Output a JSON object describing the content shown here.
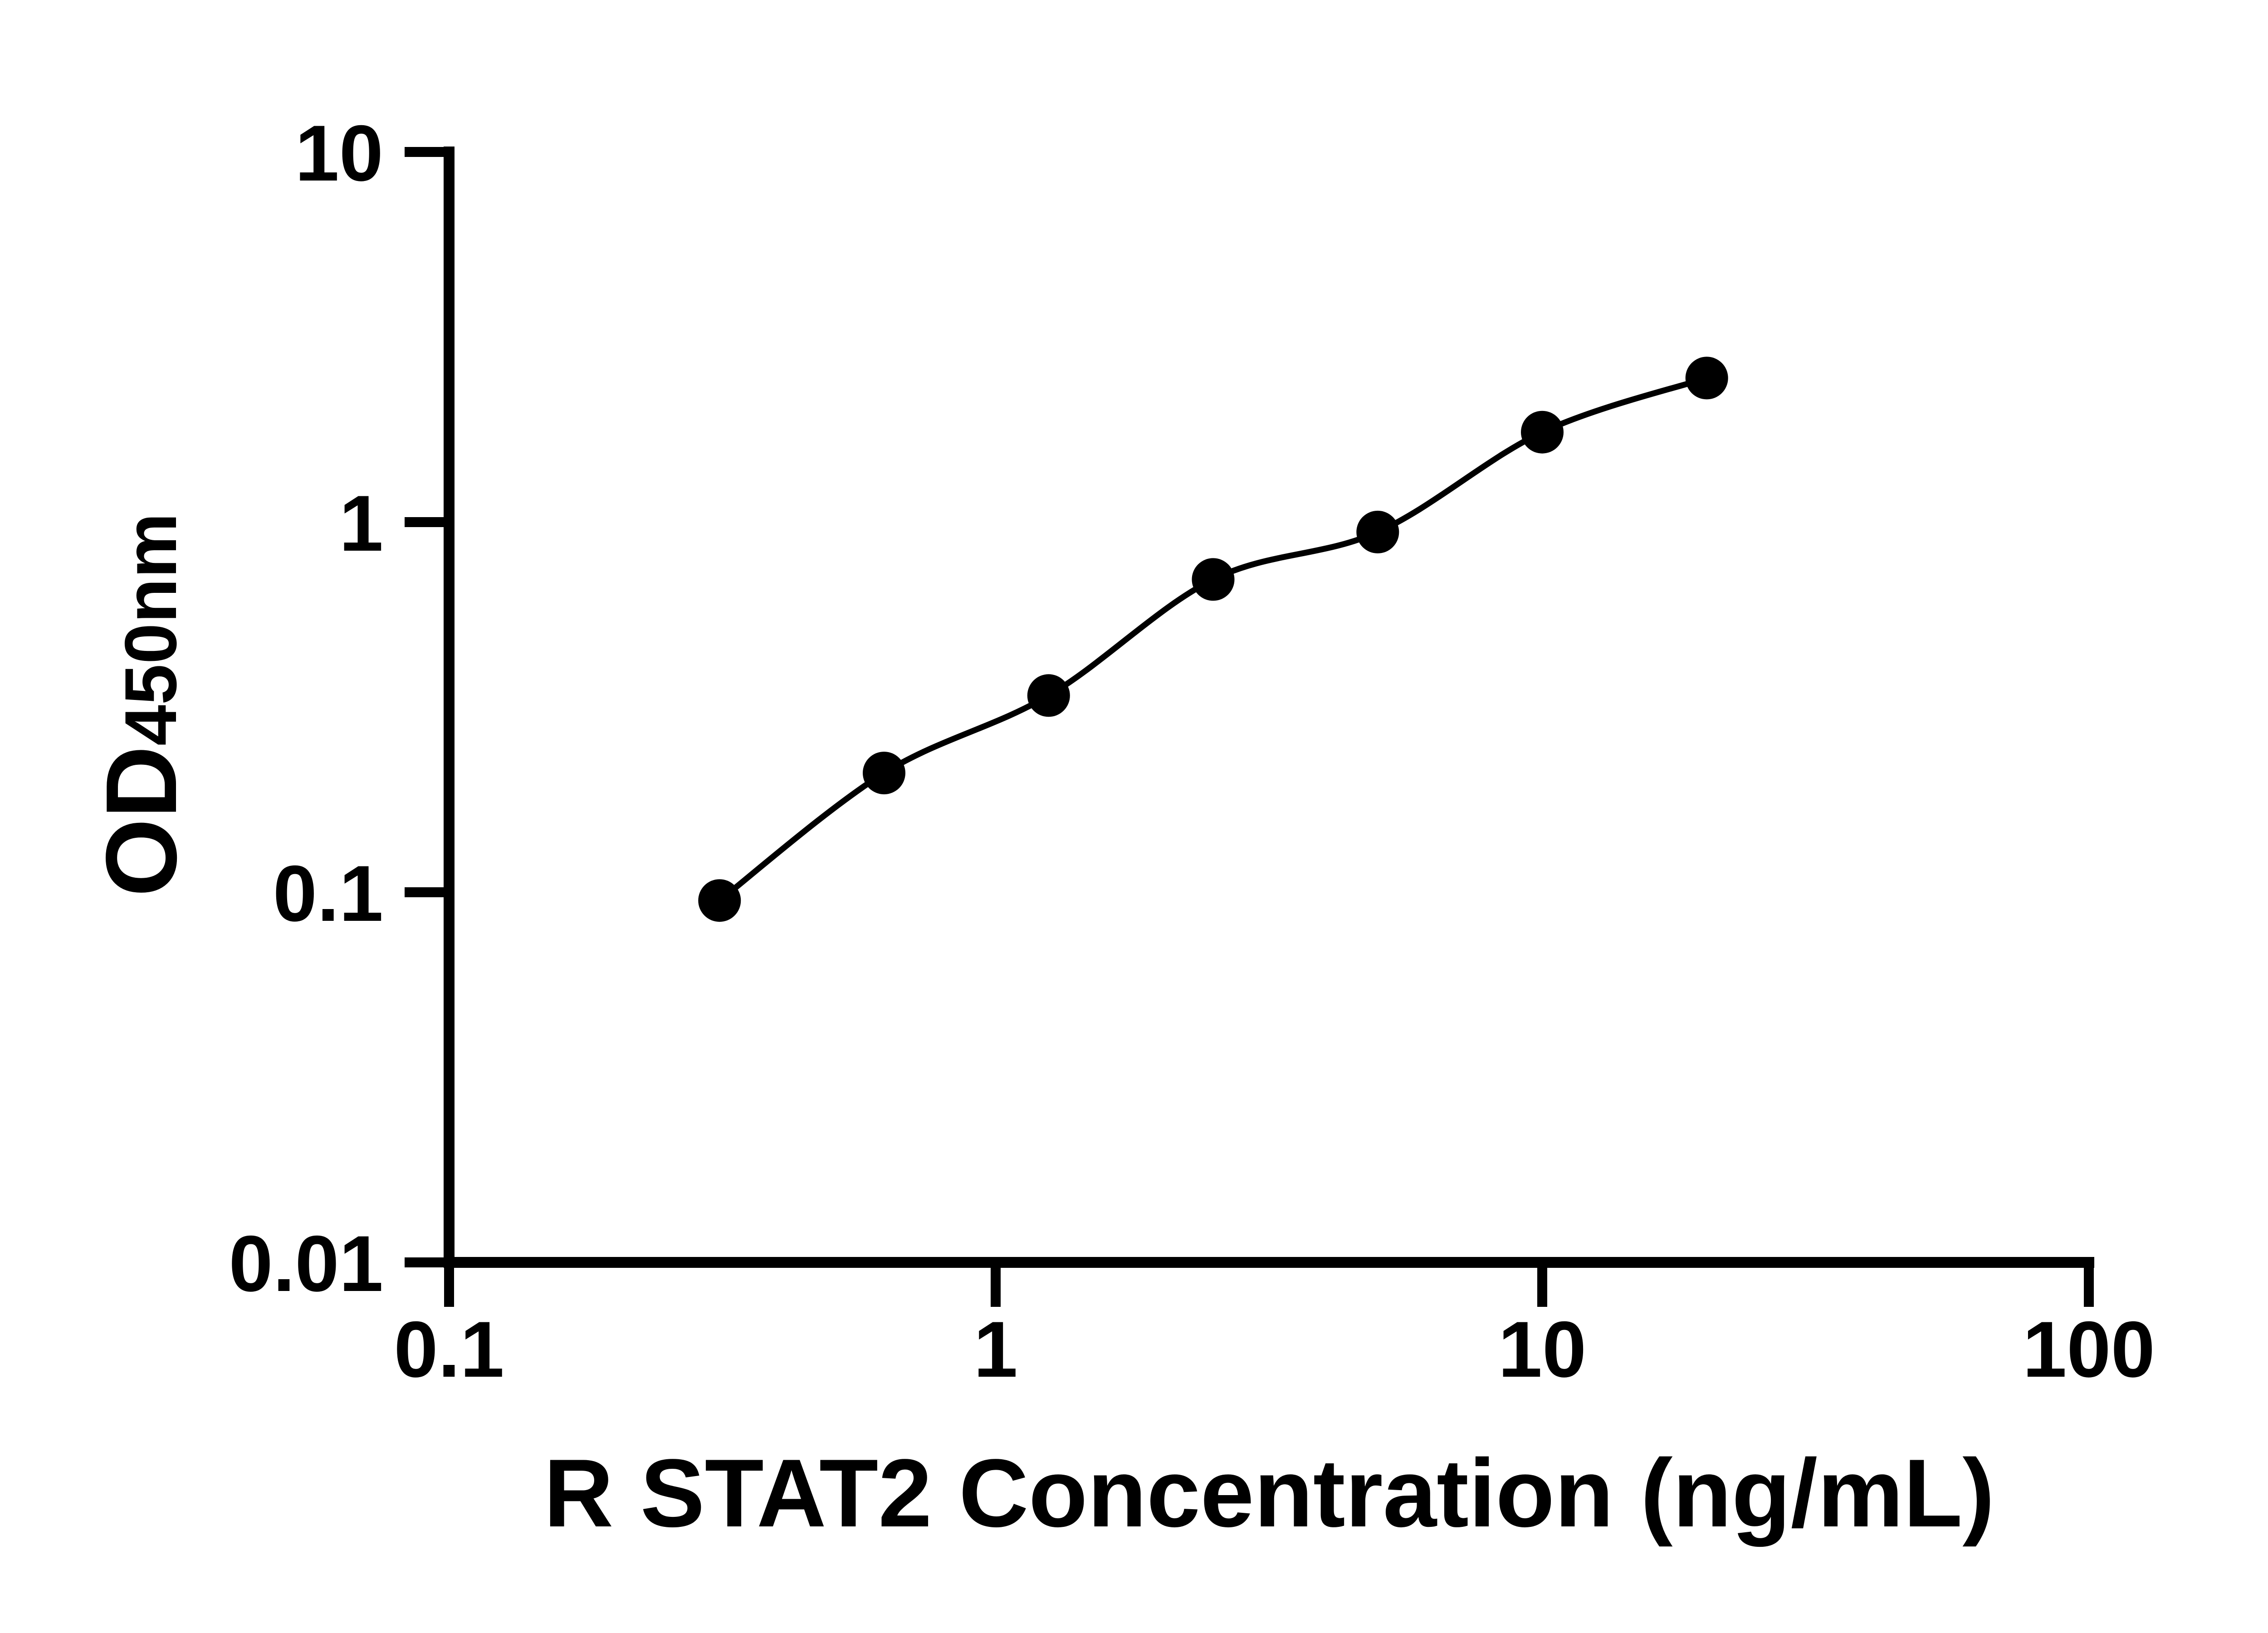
{
  "figure": {
    "background_color": "#ffffff",
    "axis_color": "#000000",
    "curve_color": "#000000",
    "marker_color": "#000000"
  },
  "chart_data": {
    "type": "scatter",
    "subtype": "elisa-standard-curve",
    "title": "",
    "xlabel": "R STAT2 Concentration (ng/mL)",
    "ylabel_main": "OD",
    "ylabel_sub": "450nm",
    "x_scale": "log10",
    "y_scale": "log10",
    "xlim": [
      0.1,
      100
    ],
    "ylim": [
      0.01,
      10
    ],
    "grid": false,
    "legend": "none",
    "x_ticks": [
      {
        "value": 0.1,
        "label": "0.1"
      },
      {
        "value": 1,
        "label": "1"
      },
      {
        "value": 10,
        "label": "10"
      },
      {
        "value": 100,
        "label": "100"
      }
    ],
    "y_ticks": [
      {
        "value": 0.01,
        "label": "0.01"
      },
      {
        "value": 0.1,
        "label": "0.1"
      },
      {
        "value": 1,
        "label": "1"
      },
      {
        "value": 10,
        "label": "10"
      }
    ],
    "series": [
      {
        "name": "standard-curve",
        "marker": "filled-circle",
        "line": "smooth",
        "color": "#000000",
        "points": [
          {
            "x": 0.3125,
            "y": 0.095
          },
          {
            "x": 0.625,
            "y": 0.21
          },
          {
            "x": 1.25,
            "y": 0.34
          },
          {
            "x": 2.5,
            "y": 0.7
          },
          {
            "x": 5,
            "y": 0.94
          },
          {
            "x": 10,
            "y": 1.75
          },
          {
            "x": 20,
            "y": 2.45
          }
        ]
      }
    ]
  }
}
